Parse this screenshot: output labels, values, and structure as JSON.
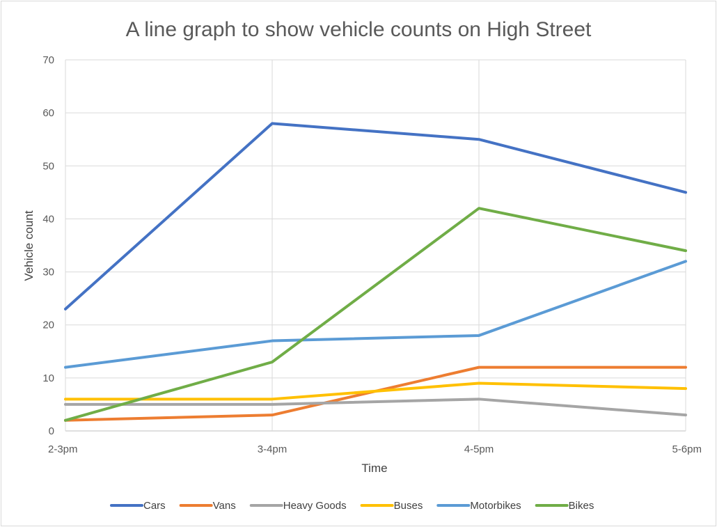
{
  "chart_data": {
    "type": "line",
    "title": "A line graph to show vehicle counts on High Street",
    "xlabel": "Time",
    "ylabel": "Vehicle count",
    "categories": [
      "2-3pm",
      "3-4pm",
      "4-5pm",
      "5-6pm"
    ],
    "ylim": [
      0,
      70
    ],
    "yticks": [
      0,
      10,
      20,
      30,
      40,
      50,
      60,
      70
    ],
    "grid": true,
    "legend_position": "bottom",
    "series": [
      {
        "name": "Cars",
        "color": "#4472C4",
        "values": [
          23,
          58,
          55,
          45
        ]
      },
      {
        "name": "Vans",
        "color": "#ED7D31",
        "values": [
          2,
          3,
          12,
          12
        ]
      },
      {
        "name": "Heavy Goods",
        "color": "#A5A5A5",
        "values": [
          5,
          5,
          6,
          3
        ]
      },
      {
        "name": "Buses",
        "color": "#FFC000",
        "values": [
          6,
          6,
          9,
          8
        ]
      },
      {
        "name": "Motorbikes",
        "color": "#5B9BD5",
        "values": [
          12,
          17,
          18,
          32
        ]
      },
      {
        "name": "Bikes",
        "color": "#70AD47",
        "values": [
          2,
          13,
          42,
          34
        ]
      }
    ]
  }
}
